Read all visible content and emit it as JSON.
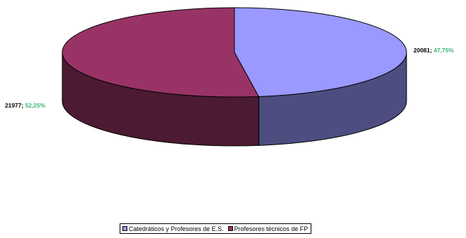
{
  "chart_data": {
    "type": "pie",
    "style": "3d",
    "title": "",
    "series": [
      {
        "name": "Catedráticos y Profesores de E.S.",
        "value": 20081,
        "percent_label": "47,75%",
        "color": "#9999ff",
        "side_color": "#4d4d80"
      },
      {
        "name": "Profesores técnicos de FP",
        "value": 21977,
        "percent_label": "52,25%",
        "color": "#993366",
        "side_color": "#4d1a33"
      }
    ],
    "data_labels": [
      {
        "value_text": "20081",
        "separator": "; ",
        "percent_text": "47,75%"
      },
      {
        "value_text": "21977",
        "separator": "; ",
        "percent_text": "52,25%"
      }
    ],
    "legend": {
      "position": "bottom",
      "entries": [
        "Catedráticos y Profesores de E.S.",
        "Profesores técnicos de FP"
      ]
    }
  }
}
